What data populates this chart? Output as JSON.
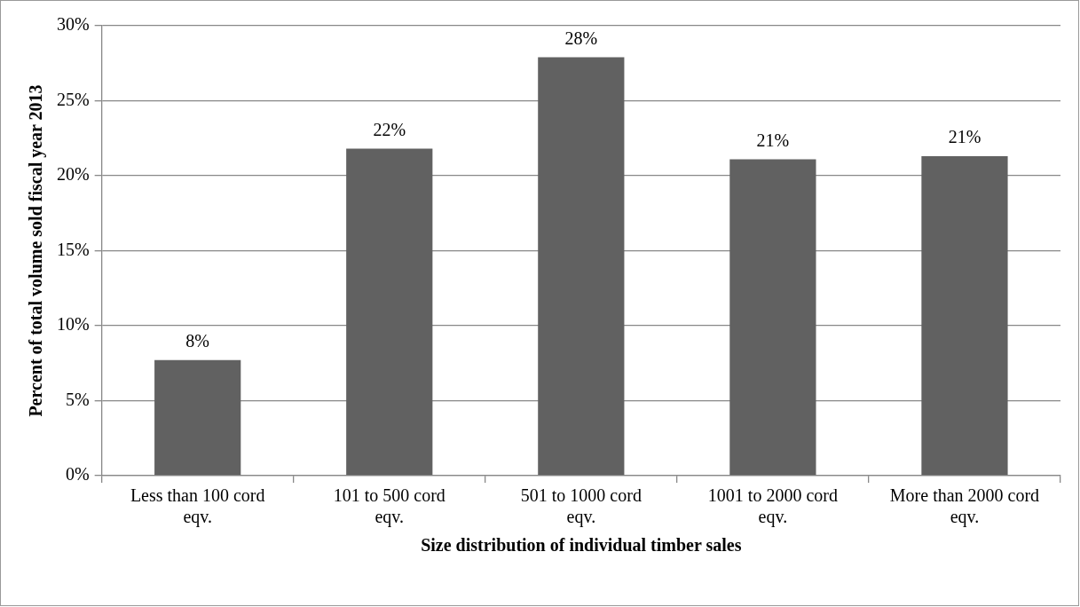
{
  "chart_data": {
    "type": "bar",
    "xlabel": "Size distribution of individual timber sales",
    "ylabel": "Percent of total volume sold fiscal year 2013",
    "categories": [
      "Less than 100 cord eqv.",
      "101 to 500 cord eqv.",
      "501 to 1000 cord eqv.",
      "1001 to 2000 cord eqv.",
      "More than 2000 cord eqv."
    ],
    "values": [
      7.7,
      21.8,
      27.9,
      21.1,
      21.3
    ],
    "value_labels": [
      "8%",
      "22%",
      "28%",
      "21%",
      "21%"
    ],
    "color": "#616161",
    "ylim": [
      0,
      30
    ],
    "yticks": [
      {
        "value": 0,
        "label": "0%"
      },
      {
        "value": 5,
        "label": "5%"
      },
      {
        "value": 10,
        "label": "10%"
      },
      {
        "value": 15,
        "label": "15%"
      },
      {
        "value": 20,
        "label": "20%"
      },
      {
        "value": 25,
        "label": "25%"
      },
      {
        "value": 30,
        "label": "30%"
      }
    ],
    "grid": "y",
    "legend": false
  }
}
